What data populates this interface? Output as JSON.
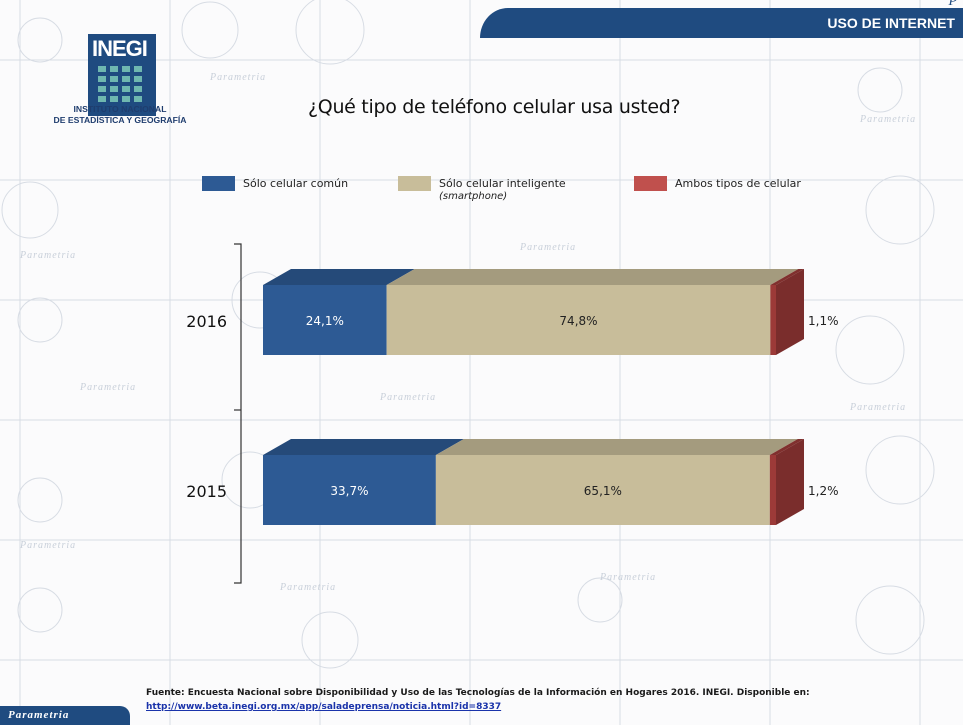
{
  "header": {
    "banner_text": "USO DE INTERNET",
    "corner_glyph": "P"
  },
  "logo": {
    "wordmark": "INEGI",
    "caption_line1": "INSTITUTO NACIONAL",
    "caption_line2": "DE ESTADÍSTICA Y GEOGRAFÍA"
  },
  "background": {
    "watermark_text": "Parametria",
    "colors": {
      "page": "#fbfbfc",
      "watermark": "#c9d0da"
    }
  },
  "chart_data": {
    "type": "bar",
    "stacked": true,
    "orientation": "horizontal",
    "title": "¿Qué tipo de teléfono celular usa usted?",
    "categories": [
      "2016",
      "2015"
    ],
    "series": [
      {
        "name": "Sólo celular común",
        "values": [
          24.1,
          33.7
        ],
        "labels": [
          "24,1%",
          "33,7%"
        ],
        "color": "#2d5a94"
      },
      {
        "name": "Sólo celular inteligente",
        "name_note": "(smartphone)",
        "values": [
          74.8,
          65.1
        ],
        "labels": [
          "74,8%",
          "65,1%"
        ],
        "color": "#c8bd9a"
      },
      {
        "name": "Ambos tipos de celular",
        "values": [
          1.1,
          1.2
        ],
        "labels": [
          "1,1%",
          "1,2%"
        ],
        "color": "#9c3a38"
      }
    ],
    "xlim": [
      0,
      100
    ],
    "legend_position": "top",
    "style_3d": true
  },
  "footer": {
    "source_text": "Fuente: Encuesta Nacional sobre Disponibilidad y Uso de las Tecnologías de la Información en Hogares 2016. INEGI. Disponible en:",
    "source_link": "http://www.beta.inegi.org.mx/app/saladeprensa/noticia.html?id=8337",
    "brand_tab": "Parametria"
  }
}
